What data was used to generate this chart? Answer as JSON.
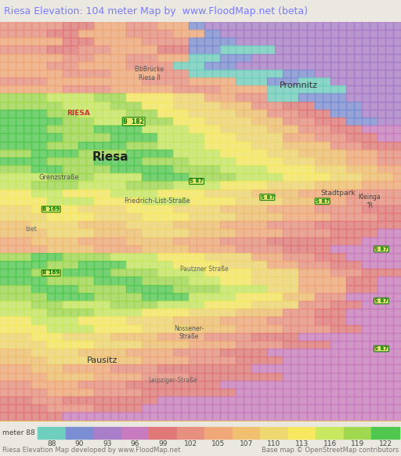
{
  "title": "Riesa Elevation: 104 meter Map by  www.FloodMap.net (beta)",
  "title_color": "#7b7bff",
  "title_bg": "#eae8e0",
  "colorbar_labels": [
    "meter 88",
    "90",
    "93",
    "96",
    "99",
    "102",
    "105",
    "107",
    "110",
    "113",
    "116",
    "119",
    "122"
  ],
  "colorbar_values": [
    88,
    90,
    93,
    96,
    99,
    102,
    105,
    107,
    110,
    113,
    116,
    119,
    122
  ],
  "colorbar_colors": [
    "#6ecfbf",
    "#7b8ed4",
    "#a87ec8",
    "#c87cbf",
    "#e07878",
    "#e89080",
    "#f0a878",
    "#f0c070",
    "#f0d870",
    "#f8e860",
    "#c8e860",
    "#a0d850",
    "#50c850"
  ],
  "bottom_text_left": "Riesa Elevation Map developed by www.FloodMap.net",
  "bottom_text_right": "Base map © OpenStreetMap contributors",
  "fig_width": 5.12,
  "fig_height": 5.82,
  "title_fontsize": 9.0,
  "legend_label_fontsize": 6.5,
  "legend_attr_fontsize": 6.0,
  "map_bg": "#f0c090"
}
